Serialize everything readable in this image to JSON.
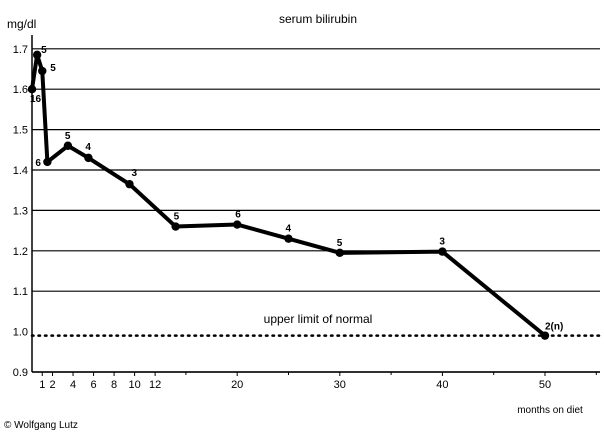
{
  "chart_data": {
    "type": "line",
    "title": "serum bilirubin",
    "ylabel": "mg/dl",
    "xlabel": "months on diet",
    "x_ticks": [
      1,
      2,
      4,
      6,
      8,
      10,
      12,
      20,
      30,
      40,
      50
    ],
    "y_ticks": [
      "0.9",
      "1.0",
      "1.1",
      "1.2",
      "1.3",
      "1.4",
      "1.5",
      "1.6",
      "1.7"
    ],
    "xlim": [
      0,
      58
    ],
    "ylim": [
      0.9,
      1.72
    ],
    "grid": "horizontal",
    "reference_line": {
      "label": "upper limit of normal",
      "value": 0.99,
      "style": "dotted"
    },
    "points": [
      {
        "x": 0,
        "y": 1.6,
        "label": "16"
      },
      {
        "x": 0.5,
        "y": 1.685,
        "label": "5"
      },
      {
        "x": 1,
        "y": 1.645,
        "label": "5"
      },
      {
        "x": 1.5,
        "y": 1.42,
        "label": "6"
      },
      {
        "x": 3.5,
        "y": 1.46,
        "label": "5"
      },
      {
        "x": 5.5,
        "y": 1.43,
        "label": "4"
      },
      {
        "x": 9.5,
        "y": 1.365,
        "label": "3"
      },
      {
        "x": 14,
        "y": 1.26,
        "label": "5"
      },
      {
        "x": 20,
        "y": 1.265,
        "label": "6"
      },
      {
        "x": 25,
        "y": 1.23,
        "label": "4"
      },
      {
        "x": 30,
        "y": 1.195,
        "label": "5"
      },
      {
        "x": 40,
        "y": 1.198,
        "label": "3"
      },
      {
        "x": 50,
        "y": 0.99,
        "label": "2(n)"
      }
    ]
  },
  "copyright": "© Wolfgang Lutz"
}
